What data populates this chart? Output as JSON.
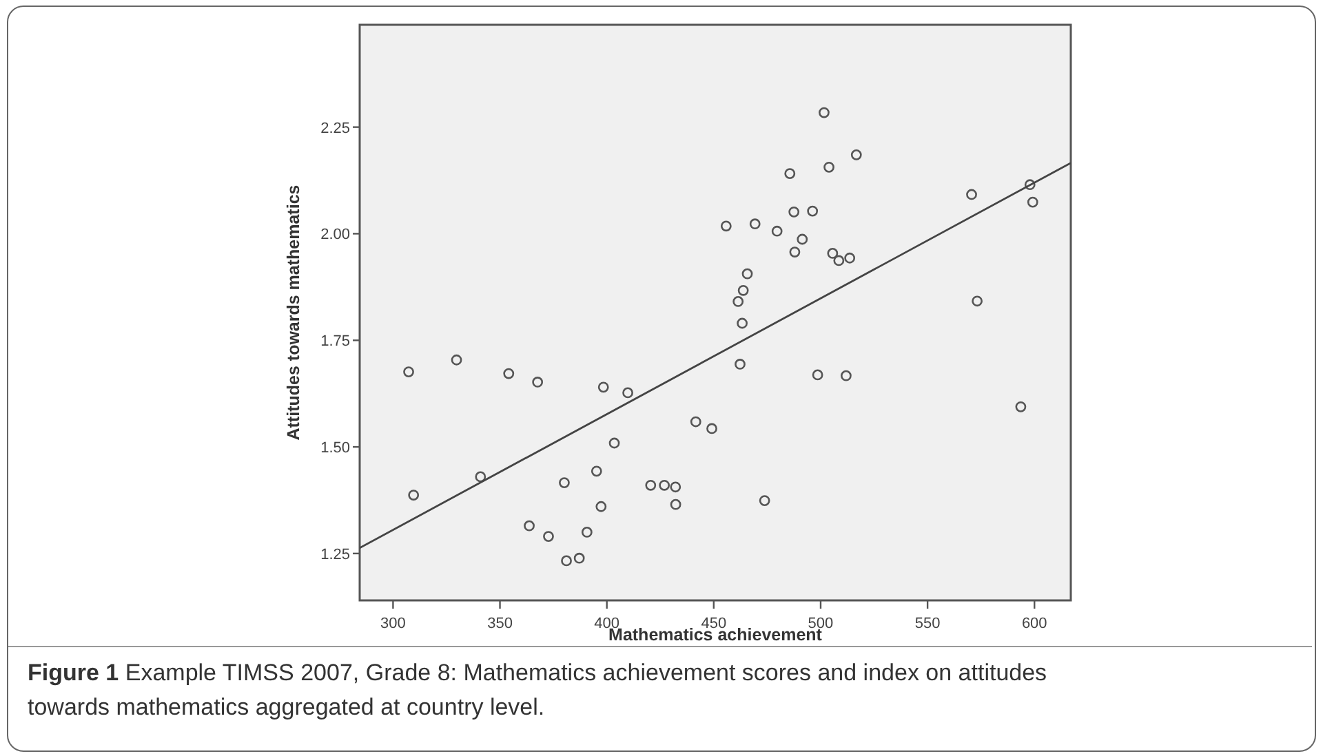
{
  "chart_data": {
    "type": "scatter",
    "title": "Figure 1",
    "annotations": [
      "Example TIMSS 2007, Grade 8: Mathematics achievement scores and index on attitudes towards mathematics aggregated at country level."
    ],
    "xlabel": "Mathematics achievement",
    "ylabel": "Attitudes towards mathematics",
    "xlim": [
      284.4,
      617
    ],
    "ylim": [
      1.14,
      2.49
    ],
    "xticks": [
      300,
      350,
      400,
      450,
      500,
      550,
      600
    ],
    "yticks": [
      {
        "value": 1.25,
        "label": "1.25"
      },
      {
        "value": 1.5,
        "label": "1.50"
      },
      {
        "value": 1.75,
        "label": "1.75"
      },
      {
        "value": 2,
        "label": "2.00"
      },
      {
        "value": 2.25,
        "label": "2.25"
      }
    ],
    "grid": false,
    "marker": "circle",
    "series": [
      {
        "type": "scatter",
        "color": "#555555",
        "x": [
          307.3,
          309.6,
          329.7,
          340.9,
          354.1,
          367.6,
          380.1,
          363.7,
          372.7,
          381.1,
          387.1,
          390.7,
          397.3,
          395.2,
          398.4,
          403.5,
          409.8,
          420.5,
          426.9,
          432.1,
          432.2,
          441.6,
          449.1,
          455.8,
          461.4,
          462.3,
          463.3,
          463.8,
          465.7,
          469.3,
          473.8,
          479.6,
          485.6,
          487.5,
          487.9,
          491.4,
          496.2,
          498.6,
          501.6,
          503.9,
          505.6,
          508.5,
          513.6,
          511.9,
          516.7,
          570.6,
          573.2,
          593.6,
          597.9,
          599.2
        ],
        "values": [
          1.676,
          1.387,
          1.704,
          1.43,
          1.672,
          1.652,
          1.416,
          1.315,
          1.29,
          1.233,
          1.239,
          1.3,
          1.36,
          1.443,
          1.64,
          1.509,
          1.627,
          1.41,
          1.41,
          1.406,
          1.365,
          1.559,
          1.543,
          2.018,
          1.841,
          1.694,
          1.79,
          1.867,
          1.906,
          2.023,
          1.374,
          2.006,
          2.141,
          2.051,
          1.957,
          1.987,
          2.053,
          1.669,
          2.284,
          2.156,
          1.954,
          1.937,
          1.943,
          1.667,
          2.185,
          2.092,
          1.842,
          1.594,
          2.115,
          2.074
        ]
      },
      {
        "type": "line",
        "color": "#444444",
        "marker": "none",
        "x": [
          284.4,
          617
        ],
        "values": [
          1.263,
          2.166
        ]
      }
    ]
  }
}
